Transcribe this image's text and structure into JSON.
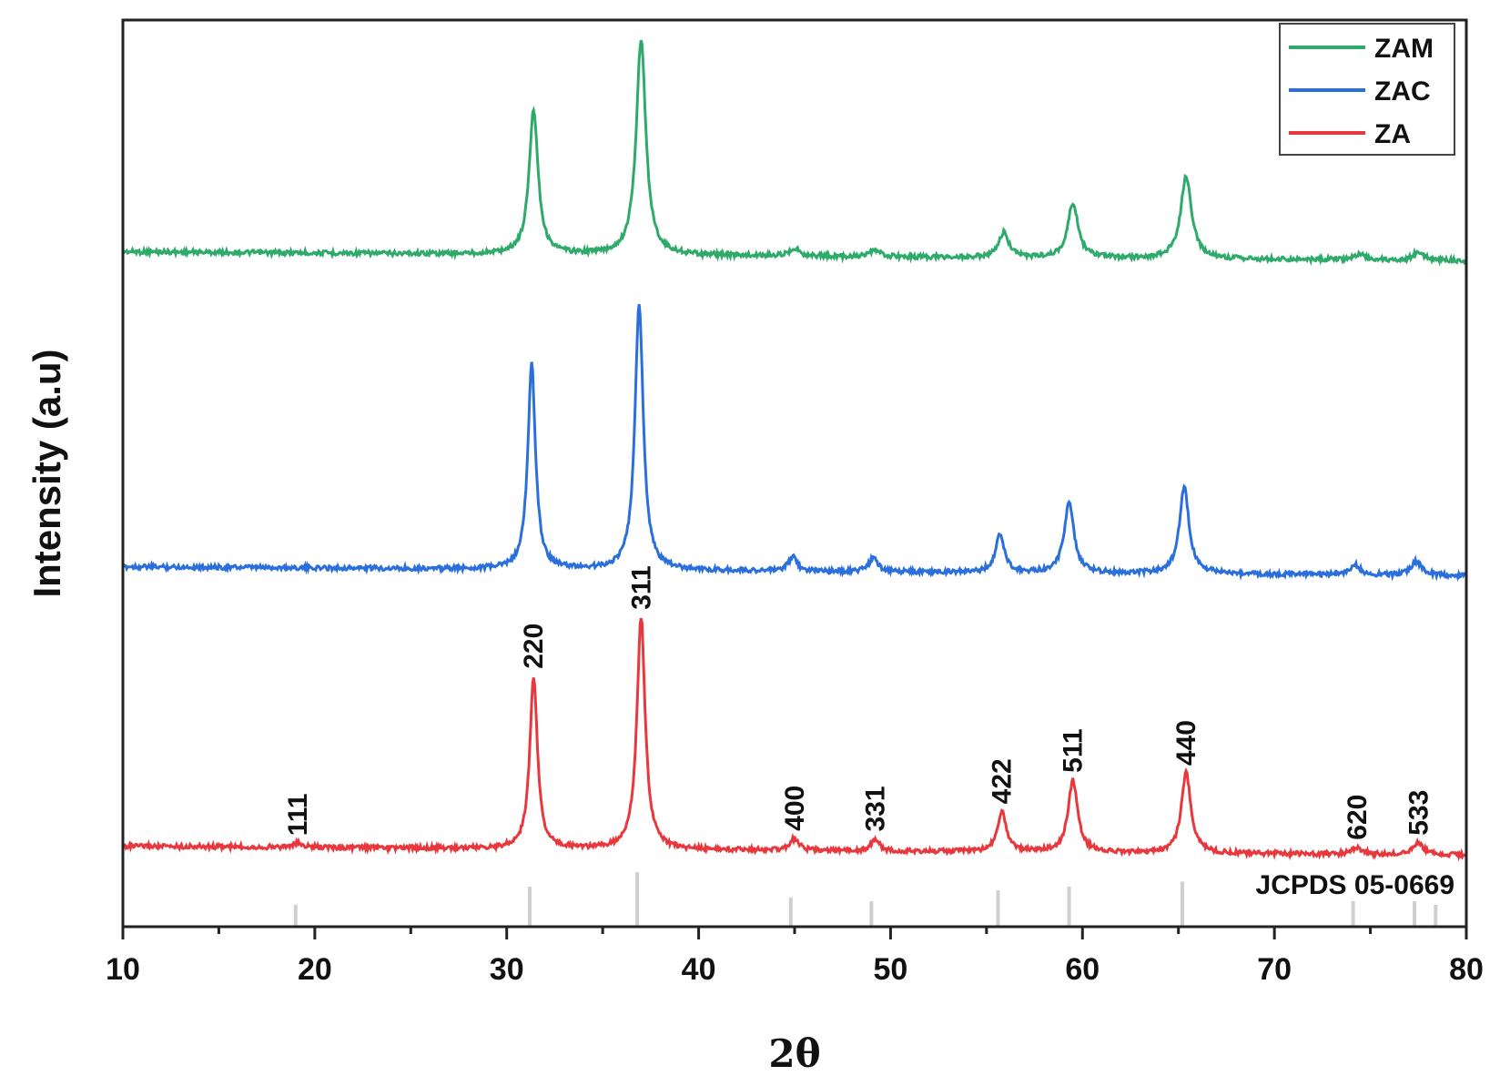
{
  "chart_data": {
    "type": "line",
    "title": "",
    "xlabel": "2θ",
    "ylabel": "Intensity (a.u)",
    "xlim": [
      10,
      80
    ],
    "xticks": [
      10,
      20,
      30,
      40,
      50,
      60,
      70,
      80
    ],
    "grid": false,
    "legend_position": "top-right",
    "series": [
      {
        "name": "ZAM",
        "color": "#2eaa6a",
        "baseline": 0.05,
        "peaks": [
          {
            "x": 31.4,
            "h": 1.45,
            "w": 0.28
          },
          {
            "x": 37.0,
            "h": 2.15,
            "w": 0.3
          },
          {
            "x": 45.0,
            "h": 0.08,
            "w": 0.3
          },
          {
            "x": 49.2,
            "h": 0.06,
            "w": 0.3
          },
          {
            "x": 55.9,
            "h": 0.25,
            "w": 0.3
          },
          {
            "x": 59.5,
            "h": 0.55,
            "w": 0.32
          },
          {
            "x": 65.4,
            "h": 0.82,
            "w": 0.34
          },
          {
            "x": 74.4,
            "h": 0.06,
            "w": 0.35
          },
          {
            "x": 77.5,
            "h": 0.08,
            "w": 0.35
          }
        ]
      },
      {
        "name": "ZAC",
        "color": "#2a6fdb",
        "baseline": 0.05,
        "peaks": [
          {
            "x": 31.3,
            "h": 2.05,
            "w": 0.24
          },
          {
            "x": 36.9,
            "h": 2.65,
            "w": 0.26
          },
          {
            "x": 44.9,
            "h": 0.14,
            "w": 0.26
          },
          {
            "x": 49.1,
            "h": 0.14,
            "w": 0.26
          },
          {
            "x": 55.7,
            "h": 0.37,
            "w": 0.28
          },
          {
            "x": 59.3,
            "h": 0.71,
            "w": 0.3
          },
          {
            "x": 65.3,
            "h": 0.86,
            "w": 0.3
          },
          {
            "x": 74.2,
            "h": 0.1,
            "w": 0.32
          },
          {
            "x": 77.4,
            "h": 0.14,
            "w": 0.32
          }
        ]
      },
      {
        "name": "ZA",
        "color": "#e8383d",
        "baseline": 0.05,
        "peaks": [
          {
            "x": 19.1,
            "h": 0.04,
            "w": 0.3
          },
          {
            "x": 31.4,
            "h": 1.72,
            "w": 0.24
          },
          {
            "x": 37.0,
            "h": 2.32,
            "w": 0.26
          },
          {
            "x": 45.0,
            "h": 0.12,
            "w": 0.26
          },
          {
            "x": 49.2,
            "h": 0.12,
            "w": 0.26
          },
          {
            "x": 55.8,
            "h": 0.4,
            "w": 0.28
          },
          {
            "x": 59.5,
            "h": 0.72,
            "w": 0.3
          },
          {
            "x": 65.4,
            "h": 0.8,
            "w": 0.3
          },
          {
            "x": 74.3,
            "h": 0.07,
            "w": 0.32
          },
          {
            "x": 77.5,
            "h": 0.12,
            "w": 0.32
          }
        ]
      }
    ],
    "peak_labels": [
      {
        "text": "111",
        "x": 19.1
      },
      {
        "text": "220",
        "x": 31.4
      },
      {
        "text": "311",
        "x": 37.0
      },
      {
        "text": "400",
        "x": 45.0
      },
      {
        "text": "331",
        "x": 49.2
      },
      {
        "text": "422",
        "x": 55.8
      },
      {
        "text": "511",
        "x": 59.5
      },
      {
        "text": "440",
        "x": 65.4
      },
      {
        "text": "620",
        "x": 74.3
      },
      {
        "text": "533",
        "x": 77.5
      }
    ],
    "reference": {
      "label": "JCPDS 05-0669",
      "lines": [
        {
          "x": 19.0,
          "h": 0.3
        },
        {
          "x": 31.2,
          "h": 0.55
        },
        {
          "x": 36.8,
          "h": 0.75
        },
        {
          "x": 44.8,
          "h": 0.4
        },
        {
          "x": 49.0,
          "h": 0.35
        },
        {
          "x": 55.6,
          "h": 0.5
        },
        {
          "x": 59.3,
          "h": 0.55
        },
        {
          "x": 65.2,
          "h": 0.62
        },
        {
          "x": 74.1,
          "h": 0.35
        },
        {
          "x": 77.3,
          "h": 0.35
        },
        {
          "x": 78.4,
          "h": 0.3
        }
      ]
    }
  }
}
